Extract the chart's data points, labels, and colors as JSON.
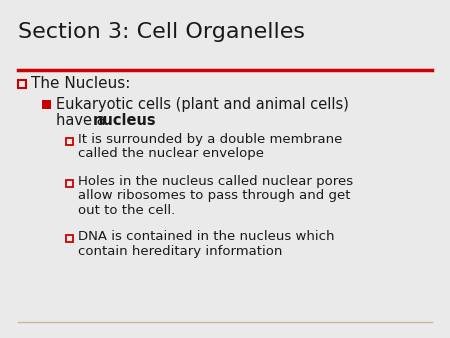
{
  "title": "Section 3: Cell Organelles",
  "background_color": "#eaeaea",
  "title_color": "#1a1a1a",
  "title_fontsize": 16,
  "red_color": "#cc0000",
  "tan_color": "#c8b89a",
  "text_color": "#1a1a1a",
  "l1_fontsize": 11,
  "l2_fontsize": 10.5,
  "l3_fontsize": 9.5,
  "bullet2_line1": "Eukaryotic cells (plant and animal cells)",
  "bullet2_line2_normal": "have a ",
  "bullet2_line2_bold": "nucleus",
  "sub_bullets": [
    [
      "It is surrounded by a double membrane",
      "called the nuclear envelope"
    ],
    [
      "Holes in the nucleus called nuclear pores",
      "allow ribosomes to pass through and get",
      "out to the cell."
    ],
    [
      "DNA is contained in the nucleus which",
      "contain hereditary information"
    ]
  ]
}
